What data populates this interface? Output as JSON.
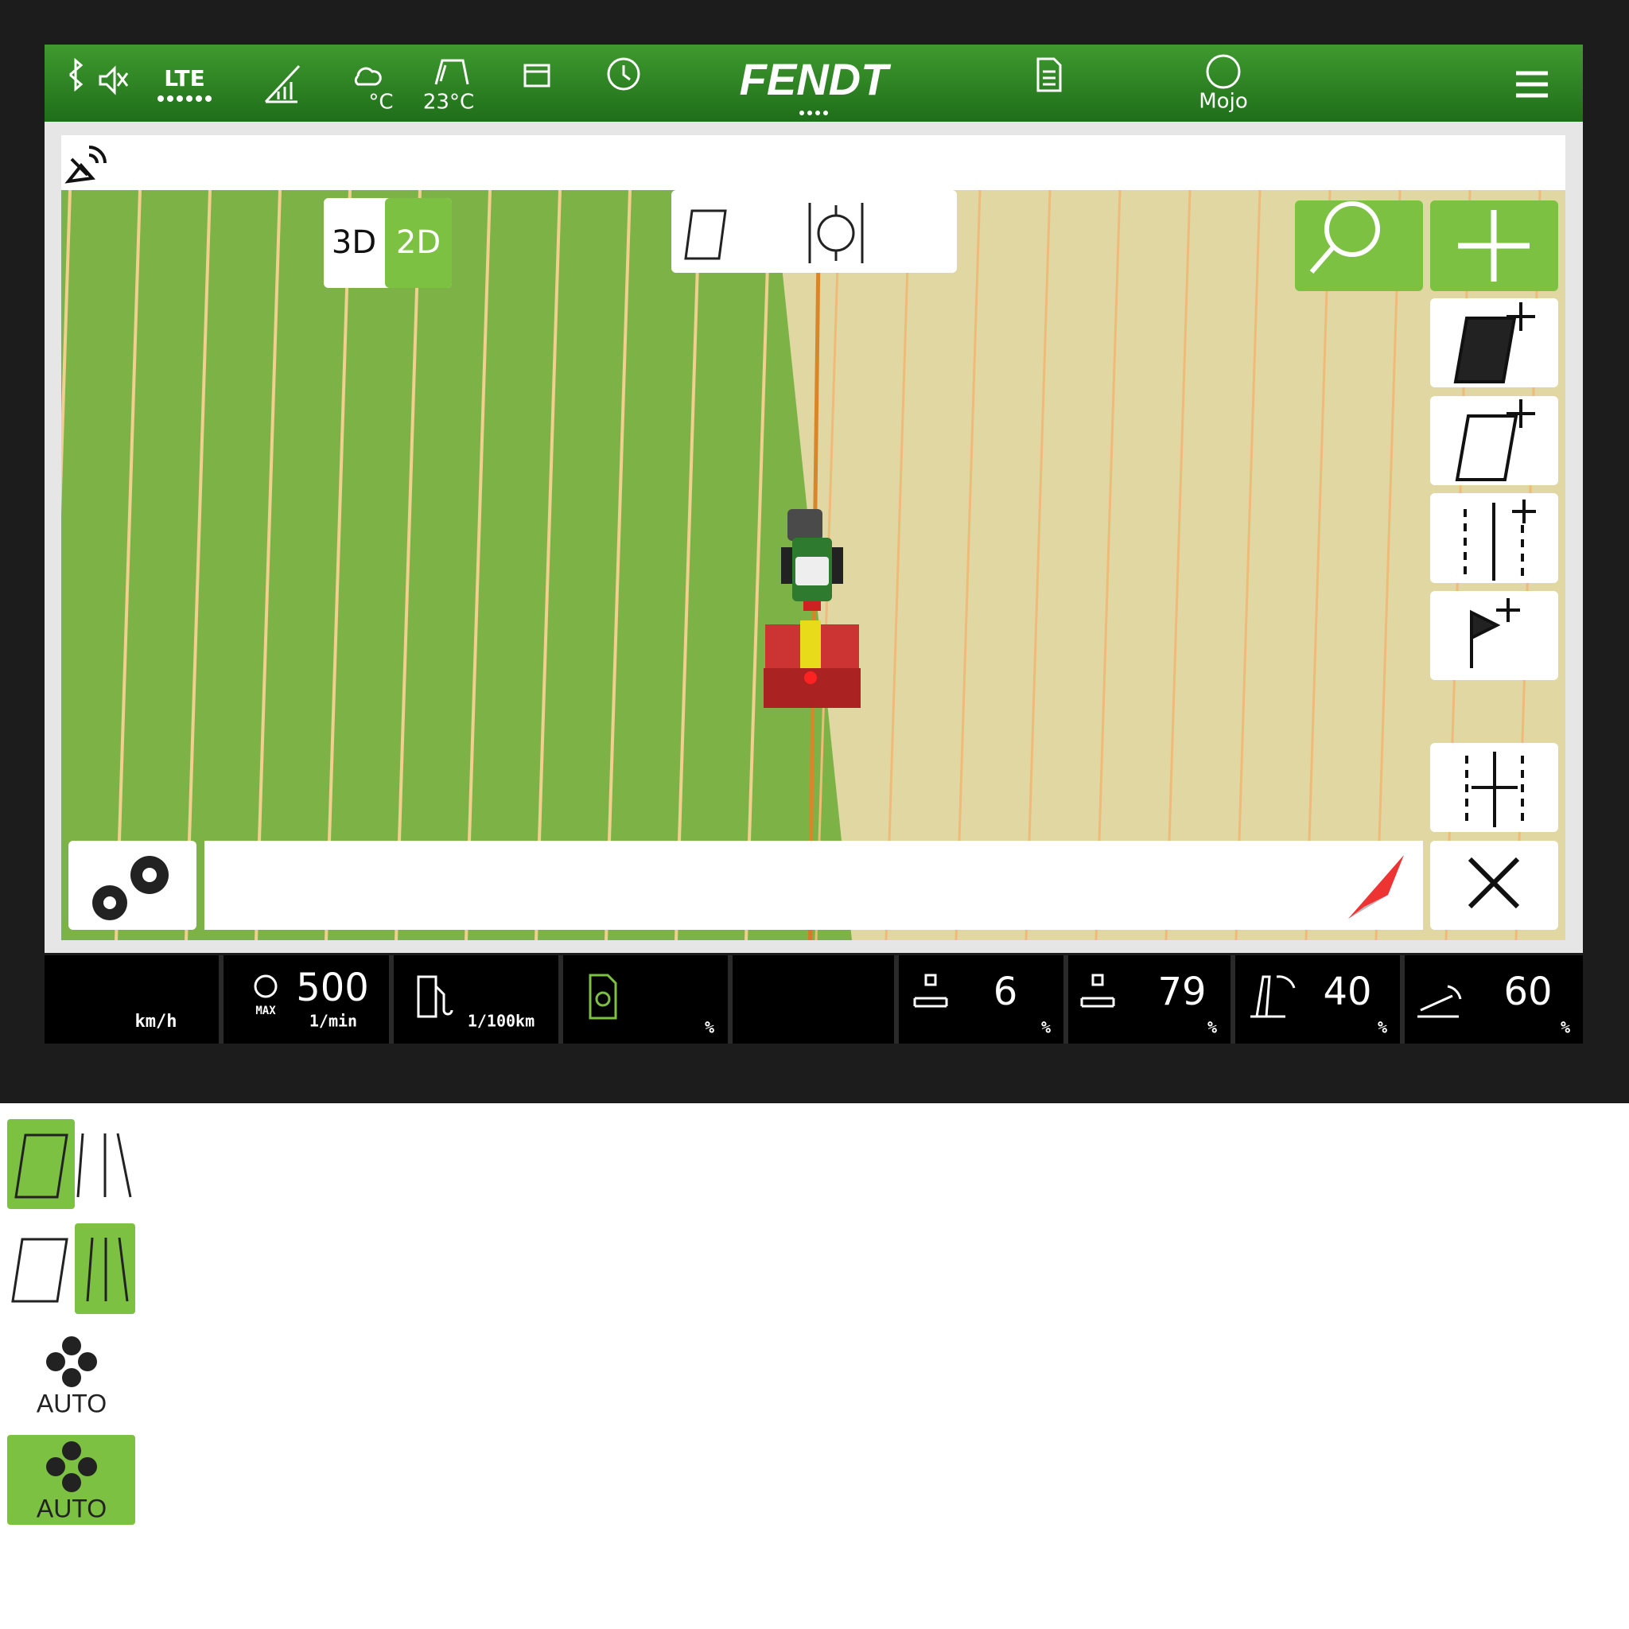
{
  "status_bar": {
    "network": "LTE",
    "weather_unit": "°C",
    "cab_temperature": "23°C",
    "brand": "FENDT",
    "user": "Mojo"
  },
  "map": {
    "view_3d": "3D",
    "view_2d": "2D"
  },
  "footer": {
    "speed_unit": "km/h",
    "engine_speed": 500,
    "engine_max": "MAX",
    "engine_unit": "1/min",
    "fuel_unit": "1/100km",
    "slip_unit": "%",
    "hitch": [
      {
        "value": 6,
        "unit": "%"
      },
      {
        "value": 79,
        "unit": "%"
      },
      {
        "value": 40,
        "unit": "%"
      },
      {
        "value": 60,
        "unit": "%"
      }
    ]
  },
  "legend": {
    "auto_off": "AUTO",
    "auto_on": "AUTO"
  }
}
